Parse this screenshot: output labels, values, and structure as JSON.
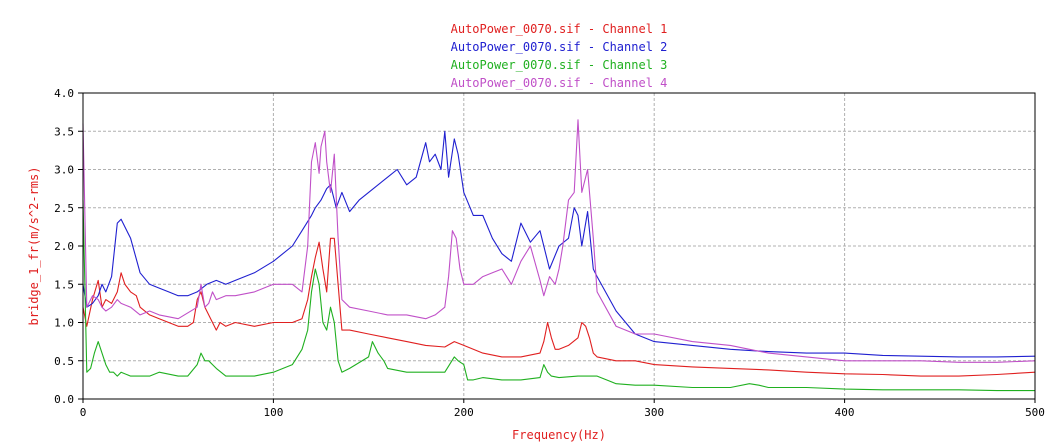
{
  "chart_data": {
    "type": "line",
    "title": "",
    "xlabel": "Frequency(Hz)",
    "ylabel": "bridge_1_fr(m/s^2-rms)",
    "xlim": [
      0,
      500
    ],
    "ylim": [
      0,
      4.0
    ],
    "x_ticks": [
      "0",
      "100",
      "200",
      "300",
      "400",
      "500"
    ],
    "y_ticks": [
      "0.0",
      "0.5",
      "1.0",
      "1.5",
      "2.0",
      "2.5",
      "3.0",
      "3.5",
      "4.0"
    ],
    "grid": true,
    "legend_position": "top-center",
    "series": [
      {
        "name": "AutoPower_0070.sif - Channel 1",
        "color": "#e02020",
        "x": [
          0,
          2,
          5,
          8,
          10,
          12,
          15,
          18,
          20,
          22,
          25,
          28,
          30,
          35,
          40,
          45,
          50,
          55,
          58,
          60,
          62,
          64,
          66,
          68,
          70,
          72,
          75,
          80,
          90,
          100,
          110,
          115,
          118,
          120,
          122,
          124,
          126,
          128,
          130,
          132,
          134,
          136,
          140,
          150,
          160,
          170,
          180,
          190,
          195,
          200,
          210,
          220,
          230,
          240,
          242,
          244,
          246,
          248,
          250,
          255,
          260,
          262,
          264,
          266,
          268,
          270,
          280,
          290,
          300,
          320,
          340,
          360,
          380,
          400,
          420,
          440,
          460,
          480,
          500
        ],
        "y": [
          1.2,
          0.95,
          1.3,
          1.55,
          1.2,
          1.3,
          1.25,
          1.4,
          1.65,
          1.5,
          1.4,
          1.35,
          1.2,
          1.1,
          1.05,
          1.0,
          0.95,
          0.95,
          1.0,
          1.3,
          1.4,
          1.2,
          1.1,
          1.0,
          0.9,
          1.0,
          0.95,
          1.0,
          0.95,
          1.0,
          1.0,
          1.05,
          1.3,
          1.6,
          1.85,
          2.05,
          1.7,
          1.4,
          2.1,
          2.1,
          1.5,
          0.9,
          0.9,
          0.85,
          0.8,
          0.75,
          0.7,
          0.68,
          0.75,
          0.7,
          0.6,
          0.55,
          0.55,
          0.6,
          0.75,
          1.0,
          0.8,
          0.65,
          0.65,
          0.7,
          0.8,
          1.0,
          0.95,
          0.8,
          0.6,
          0.55,
          0.5,
          0.5,
          0.45,
          0.42,
          0.4,
          0.38,
          0.35,
          0.33,
          0.32,
          0.3,
          0.3,
          0.32,
          0.35
        ]
      },
      {
        "name": "AutoPower_0070.sif - Channel 2",
        "color": "#2020d0",
        "x": [
          0,
          2,
          5,
          8,
          10,
          12,
          15,
          18,
          20,
          22,
          25,
          30,
          35,
          40,
          45,
          50,
          55,
          60,
          65,
          70,
          75,
          80,
          90,
          100,
          110,
          115,
          120,
          122,
          125,
          128,
          130,
          133,
          136,
          140,
          145,
          150,
          160,
          165,
          170,
          175,
          180,
          182,
          185,
          188,
          190,
          192,
          195,
          197,
          200,
          205,
          210,
          215,
          220,
          225,
          230,
          235,
          240,
          245,
          250,
          255,
          258,
          260,
          262,
          265,
          268,
          270,
          280,
          290,
          300,
          320,
          340,
          360,
          380,
          400,
          420,
          440,
          460,
          480,
          500
        ],
        "y": [
          1.5,
          1.2,
          1.25,
          1.35,
          1.5,
          1.4,
          1.6,
          2.3,
          2.35,
          2.25,
          2.1,
          1.65,
          1.5,
          1.45,
          1.4,
          1.35,
          1.35,
          1.4,
          1.5,
          1.55,
          1.5,
          1.55,
          1.65,
          1.8,
          2.0,
          2.2,
          2.4,
          2.5,
          2.6,
          2.75,
          2.8,
          2.5,
          2.7,
          2.45,
          2.6,
          2.7,
          2.9,
          3.0,
          2.8,
          2.9,
          3.35,
          3.1,
          3.2,
          3.0,
          3.5,
          2.9,
          3.4,
          3.2,
          2.7,
          2.4,
          2.4,
          2.1,
          1.9,
          1.8,
          2.3,
          2.05,
          2.2,
          1.7,
          2.0,
          2.1,
          2.5,
          2.4,
          2.0,
          2.45,
          1.7,
          1.6,
          1.15,
          0.85,
          0.75,
          0.7,
          0.65,
          0.62,
          0.6,
          0.6,
          0.57,
          0.56,
          0.55,
          0.55,
          0.56
        ]
      },
      {
        "name": "AutoPower_0070.sif - Channel 3",
        "color": "#20b020",
        "x": [
          0,
          2,
          4,
          6,
          8,
          10,
          12,
          14,
          16,
          18,
          20,
          25,
          30,
          35,
          40,
          50,
          55,
          60,
          62,
          64,
          66,
          68,
          70,
          75,
          80,
          90,
          100,
          110,
          115,
          118,
          120,
          122,
          124,
          126,
          128,
          130,
          132,
          134,
          136,
          140,
          150,
          152,
          155,
          158,
          160,
          170,
          180,
          190,
          195,
          197,
          200,
          202,
          205,
          210,
          220,
          230,
          240,
          242,
          244,
          246,
          250,
          260,
          270,
          280,
          290,
          300,
          320,
          340,
          350,
          355,
          360,
          380,
          400,
          420,
          440,
          460,
          480,
          500
        ],
        "y": [
          2.6,
          0.35,
          0.4,
          0.6,
          0.75,
          0.6,
          0.45,
          0.35,
          0.35,
          0.3,
          0.35,
          0.3,
          0.3,
          0.3,
          0.35,
          0.3,
          0.3,
          0.45,
          0.6,
          0.5,
          0.5,
          0.45,
          0.4,
          0.3,
          0.3,
          0.3,
          0.35,
          0.45,
          0.65,
          0.9,
          1.4,
          1.7,
          1.5,
          1.0,
          0.9,
          1.2,
          1.0,
          0.5,
          0.35,
          0.4,
          0.55,
          0.75,
          0.6,
          0.5,
          0.4,
          0.35,
          0.35,
          0.35,
          0.55,
          0.5,
          0.45,
          0.25,
          0.25,
          0.28,
          0.25,
          0.25,
          0.28,
          0.45,
          0.35,
          0.3,
          0.28,
          0.3,
          0.3,
          0.2,
          0.18,
          0.18,
          0.15,
          0.15,
          0.2,
          0.18,
          0.15,
          0.15,
          0.13,
          0.12,
          0.12,
          0.12,
          0.11,
          0.11
        ]
      },
      {
        "name": "AutoPower_0070.sif - Channel 4",
        "color": "#c050c8",
        "x": [
          0,
          2,
          5,
          8,
          10,
          12,
          15,
          18,
          20,
          25,
          30,
          35,
          40,
          50,
          60,
          62,
          64,
          66,
          68,
          70,
          75,
          80,
          90,
          100,
          110,
          115,
          118,
          120,
          122,
          124,
          125,
          127,
          128,
          130,
          132,
          134,
          136,
          140,
          150,
          160,
          170,
          180,
          185,
          190,
          192,
          194,
          196,
          198,
          200,
          205,
          210,
          215,
          220,
          225,
          230,
          235,
          240,
          242,
          245,
          248,
          250,
          252,
          255,
          258,
          260,
          262,
          265,
          268,
          270,
          280,
          290,
          300,
          320,
          340,
          360,
          380,
          400,
          420,
          440,
          460,
          480,
          500
        ],
        "y": [
          3.6,
          1.2,
          1.35,
          1.3,
          1.2,
          1.15,
          1.2,
          1.3,
          1.25,
          1.2,
          1.1,
          1.15,
          1.1,
          1.05,
          1.2,
          1.5,
          1.2,
          1.25,
          1.4,
          1.3,
          1.35,
          1.35,
          1.4,
          1.5,
          1.5,
          1.4,
          2.0,
          3.1,
          3.35,
          2.95,
          3.3,
          3.5,
          3.1,
          2.7,
          3.2,
          2.1,
          1.3,
          1.2,
          1.15,
          1.1,
          1.1,
          1.05,
          1.1,
          1.2,
          1.6,
          2.2,
          2.1,
          1.7,
          1.5,
          1.5,
          1.6,
          1.65,
          1.7,
          1.5,
          1.8,
          2.0,
          1.55,
          1.35,
          1.6,
          1.5,
          1.7,
          2.0,
          2.6,
          2.7,
          3.65,
          2.7,
          3.0,
          2.1,
          1.4,
          0.95,
          0.85,
          0.85,
          0.75,
          0.7,
          0.6,
          0.55,
          0.5,
          0.5,
          0.5,
          0.48,
          0.48,
          0.5
        ]
      }
    ]
  }
}
